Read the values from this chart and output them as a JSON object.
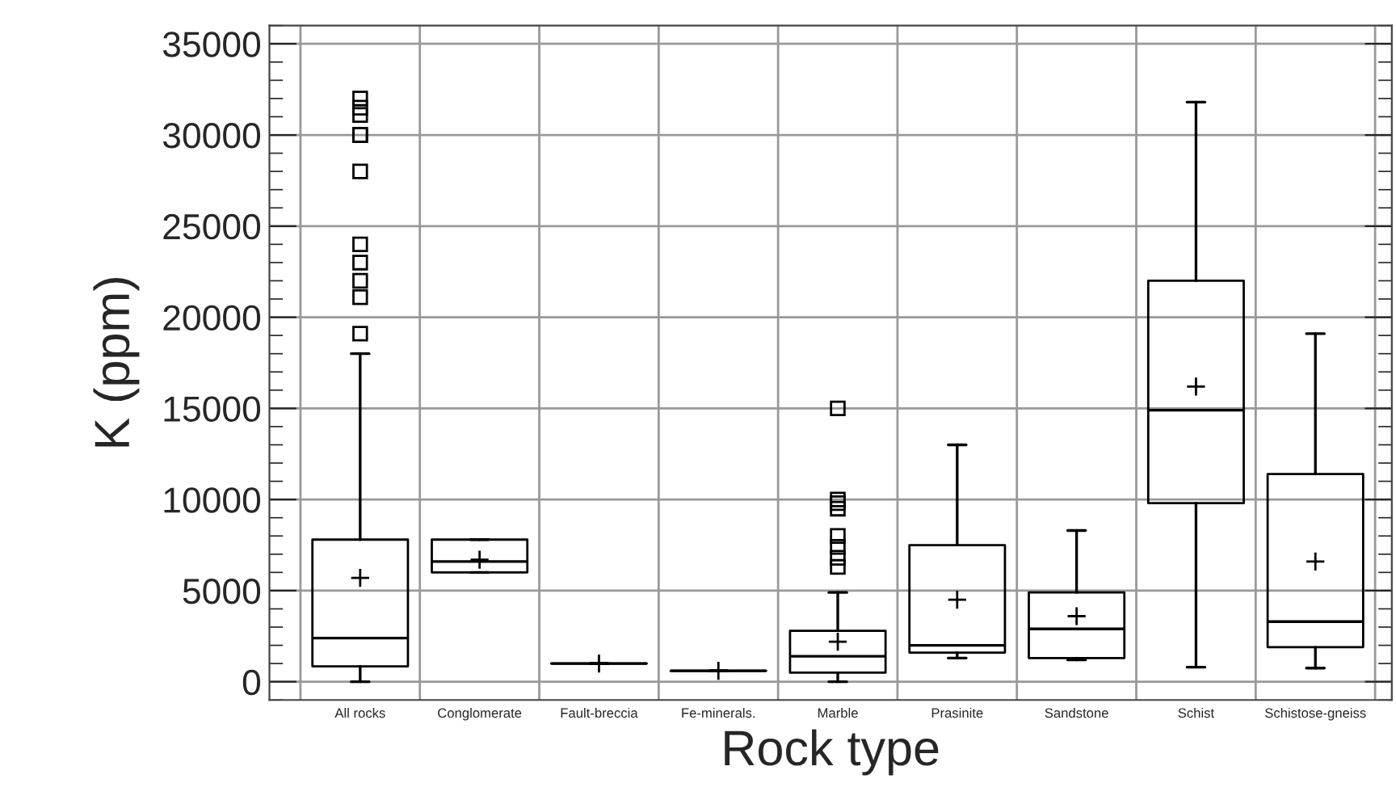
{
  "chart_data": {
    "type": "box",
    "xlabel": "Rock type",
    "ylabel": "K (ppm)",
    "categories": [
      "All rocks",
      "Conglomerate",
      "Fault-breccia",
      "Fe-minerals.",
      "Marble",
      "Prasinite",
      "Sandstone",
      "Schist",
      "Schistose-gneiss"
    ],
    "boxes": [
      {
        "low": 0,
        "q1": 850,
        "median": 2400,
        "q3": 7800,
        "high": 18000,
        "mean": 5700,
        "outliers": [
          19100,
          21100,
          22000,
          23000,
          24000,
          28000,
          30000,
          30000,
          31100,
          31500,
          32000
        ]
      },
      {
        "low": 6000,
        "q1": 6000,
        "median": 6600,
        "q3": 7800,
        "high": 7800,
        "mean": 6700
      },
      {
        "low": 1000,
        "q1": 1000,
        "median": 1000,
        "q3": 1000,
        "high": 1000,
        "mean": 1000
      },
      {
        "low": 600,
        "q1": 600,
        "median": 600,
        "q3": 600,
        "high": 600,
        "mean": 600
      },
      {
        "low": 0,
        "q1": 500,
        "median": 1400,
        "q3": 2800,
        "high": 4900,
        "mean": 2200,
        "outliers": [
          6300,
          6800,
          7400,
          8000,
          9500,
          9800,
          10000,
          15000
        ]
      },
      {
        "low": 1300,
        "q1": 1600,
        "median": 2000,
        "q3": 7500,
        "high": 13000,
        "mean": 4500
      },
      {
        "low": 1200,
        "q1": 1300,
        "median": 2900,
        "q3": 4900,
        "high": 8300,
        "mean": 3600
      },
      {
        "low": 800,
        "q1": 9800,
        "median": 14900,
        "q3": 22000,
        "high": 31800,
        "mean": 16200
      },
      {
        "low": 750,
        "q1": 1900,
        "median": 3300,
        "q3": 11400,
        "high": 19100,
        "mean": 6600
      }
    ],
    "ylim": [
      -1000,
      36000
    ],
    "yticks": [
      0,
      5000,
      10000,
      15000,
      20000,
      25000,
      30000,
      35000
    ],
    "grid": true,
    "marker": "square"
  }
}
